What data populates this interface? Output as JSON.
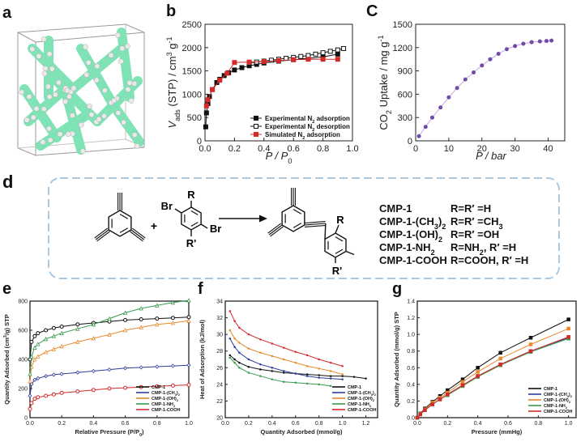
{
  "panels": {
    "a": "a",
    "b": "b",
    "c": "C",
    "d": "d",
    "e": "e",
    "f": "f",
    "g": "g"
  },
  "colors": {
    "framework": "#7fe3b6",
    "atoms": "#e9e9e9",
    "black": "#111111",
    "red": "#d42a2a",
    "purple": "#6f4aa8",
    "orange": "#e8892b",
    "green": "#3a9a4e",
    "blue": "#2c3c9a",
    "cmp1": "#111111",
    "cmp1_ch3": "#2c3c9a",
    "cmp1_oh": "#e8892b",
    "cmp1_nh2": "#3a9a4e",
    "cmp1_cooh": "#d42a2a",
    "scheme_border": "#a9c9e3"
  },
  "chart_data": [
    {
      "id": "b",
      "type": "line",
      "xlabel": "P / P",
      "xlabel_sub": "0",
      "ylabel": "V",
      "ylabel_sub": "ads",
      "ylabel_rest": " (STP) / cm",
      "ylabel_sup": "3",
      "ylabel_end": " g",
      "ylabel_sup2": "-1",
      "xlim": [
        0,
        1.0
      ],
      "ylim": [
        0,
        2500
      ],
      "xticks": [
        "0.0",
        "0.2",
        "0.4",
        "0.6",
        "0.8",
        "1.0"
      ],
      "yticks": [
        "0",
        "500",
        "1000",
        "1500",
        "2000",
        "2500"
      ],
      "legend_position": "bottom-right",
      "series": [
        {
          "name": "Experimental N",
          "name_sub": "2",
          "name_end": " adsorption",
          "marker": "square-filled",
          "color": "#111111",
          "x": [
            0.005,
            0.01,
            0.02,
            0.03,
            0.05,
            0.08,
            0.1,
            0.13,
            0.16,
            0.2,
            0.25,
            0.3,
            0.35,
            0.4,
            0.5,
            0.6,
            0.7,
            0.8,
            0.9
          ],
          "y": [
            300,
            600,
            800,
            950,
            1100,
            1250,
            1320,
            1400,
            1460,
            1520,
            1570,
            1610,
            1640,
            1670,
            1710,
            1740,
            1770,
            1800,
            1860
          ]
        },
        {
          "name": "Experimental N",
          "name_sub": "2",
          "name_end": " desorption",
          "marker": "square-open",
          "color": "#111111",
          "x": [
            0.94,
            0.9,
            0.85,
            0.8,
            0.75,
            0.7,
            0.65,
            0.6,
            0.55,
            0.5,
            0.45,
            0.4,
            0.35,
            0.3
          ],
          "y": [
            1980,
            1950,
            1920,
            1890,
            1860,
            1830,
            1810,
            1790,
            1770,
            1750,
            1730,
            1710,
            1690,
            1670
          ]
        },
        {
          "name": "Simulated N",
          "name_sub": "2",
          "name_end": " adsorption",
          "marker": "square-filled",
          "color": "#d42a2a",
          "x": [
            0.01,
            0.02,
            0.05,
            0.1,
            0.15,
            0.2,
            0.3,
            0.4,
            0.5,
            0.6,
            0.7,
            0.8,
            0.9
          ],
          "y": [
            750,
            880,
            1100,
            1300,
            1450,
            1680,
            1690,
            1700,
            1720,
            1740,
            1750,
            1750,
            1750
          ]
        }
      ]
    },
    {
      "id": "c",
      "type": "line",
      "xlabel": "P / bar",
      "ylabel": "CO",
      "ylabel_sub": "2",
      "ylabel_end": " Uptake / mg g",
      "ylabel_sup": "-1",
      "xlim": [
        0,
        45
      ],
      "ylim": [
        0,
        1500
      ],
      "xticks": [
        "0",
        "10",
        "20",
        "30",
        "40"
      ],
      "yticks": [
        "0",
        "300",
        "600",
        "900",
        "1200",
        "1500"
      ],
      "series": [
        {
          "name": "",
          "marker": "circle-filled",
          "color": "#6f4aa8",
          "x": [
            1,
            3,
            5,
            7.5,
            10,
            12.5,
            15,
            17.5,
            20,
            22.5,
            25,
            27.5,
            30,
            32.5,
            35,
            37.5,
            39.5,
            41
          ],
          "y": [
            60,
            180,
            300,
            430,
            560,
            680,
            790,
            880,
            970,
            1050,
            1120,
            1180,
            1220,
            1250,
            1270,
            1280,
            1285,
            1290
          ]
        }
      ]
    },
    {
      "id": "e",
      "type": "line",
      "xlabel": "Relative Pressure (P/P",
      "xlabel_sub": "0",
      "xlabel_end": ")",
      "ylabel": "Quantity Adsorbed (cm",
      "ylabel_sup": "3",
      "ylabel_end": "/g) STP",
      "xlim": [
        0,
        1.0
      ],
      "ylim": [
        0,
        800
      ],
      "xticks": [
        "0.0",
        "0.2",
        "0.4",
        "0.6",
        "0.8",
        "1.0"
      ],
      "yticks": [
        "0",
        "200",
        "400",
        "600",
        "800"
      ],
      "legend_position": "bottom-right",
      "legend": [
        "CMP-1",
        "CMP-1-(CH",
        "CMP-1-(OH)",
        "CMP-1-NH",
        "CMP-1-COOH"
      ],
      "legend_sub": [
        "",
        "3",
        "2",
        "2",
        ""
      ],
      "legend_end": [
        "",
        ")",
        "",
        "",
        ""
      ],
      "legend_sub2": [
        "",
        "2",
        "",
        "",
        ""
      ],
      "series": [
        {
          "name": "CMP-1",
          "color": "#111111",
          "x": [
            0,
            0.01,
            0.03,
            0.05,
            0.1,
            0.15,
            0.2,
            0.3,
            0.4,
            0.5,
            0.6,
            0.7,
            0.8,
            0.9,
            1.0
          ],
          "y": [
            400,
            520,
            560,
            580,
            600,
            615,
            625,
            640,
            650,
            660,
            670,
            675,
            680,
            685,
            690
          ]
        },
        {
          "name": "CMP-1-(CH3)2",
          "color": "#2c3c9a",
          "x": [
            0,
            0.01,
            0.03,
            0.05,
            0.1,
            0.15,
            0.2,
            0.3,
            0.4,
            0.5,
            0.6,
            0.7,
            0.8,
            0.9,
            1.0
          ],
          "y": [
            150,
            230,
            260,
            270,
            285,
            295,
            300,
            310,
            320,
            330,
            340,
            345,
            350,
            355,
            360
          ]
        },
        {
          "name": "CMP-1-(OH)2",
          "color": "#e8892b",
          "x": [
            0,
            0.01,
            0.03,
            0.05,
            0.1,
            0.15,
            0.2,
            0.3,
            0.4,
            0.5,
            0.6,
            0.7,
            0.8,
            0.9,
            1.0
          ],
          "y": [
            250,
            350,
            400,
            420,
            450,
            470,
            490,
            520,
            545,
            570,
            600,
            620,
            640,
            650,
            665
          ]
        },
        {
          "name": "CMP-1-NH2",
          "color": "#3a9a4e",
          "x": [
            0,
            0.01,
            0.03,
            0.05,
            0.1,
            0.15,
            0.2,
            0.3,
            0.4,
            0.5,
            0.6,
            0.7,
            0.8,
            0.9,
            1.0
          ],
          "y": [
            300,
            420,
            480,
            505,
            540,
            560,
            580,
            610,
            640,
            680,
            720,
            750,
            770,
            790,
            805
          ]
        },
        {
          "name": "CMP-1-COOH",
          "color": "#d42a2a",
          "x": [
            0,
            0.01,
            0.03,
            0.05,
            0.1,
            0.15,
            0.2,
            0.3,
            0.4,
            0.5,
            0.6,
            0.7,
            0.8,
            0.9,
            1.0
          ],
          "y": [
            60,
            100,
            130,
            140,
            150,
            160,
            170,
            180,
            190,
            200,
            205,
            210,
            215,
            220,
            225
          ]
        }
      ]
    },
    {
      "id": "f",
      "type": "line",
      "xlabel": "Quantity Adsorbed (mmol/g)",
      "ylabel": "Heat of Adsorption (kJ/mol)",
      "xlim": [
        0,
        1.3
      ],
      "ylim": [
        20,
        34
      ],
      "xticks": [
        "0.0",
        "0.2",
        "0.4",
        "0.6",
        "0.8",
        "1.0",
        "1.2"
      ],
      "yticks": [
        "20",
        "22",
        "24",
        "26",
        "28",
        "30",
        "32",
        "34"
      ],
      "legend_position": "bottom-right",
      "legend": [
        "CMP-1",
        "CMP-1-(CH",
        "CMP-1-(OH)",
        "CMP-1-NH",
        "CMP-1-COOH"
      ],
      "legend_sub": [
        "",
        "3",
        "2",
        "2",
        ""
      ],
      "legend_end": [
        "",
        ")",
        "",
        "",
        ""
      ],
      "legend_sub2": [
        "",
        "2",
        "",
        "",
        ""
      ],
      "series": [
        {
          "name": "CMP-1",
          "color": "#111111",
          "x": [
            0.04,
            0.08,
            0.12,
            0.2,
            0.3,
            0.4,
            0.5,
            0.6,
            0.7,
            0.8,
            0.9,
            1.0,
            1.1,
            1.2
          ],
          "y": [
            27.5,
            27.0,
            26.6,
            26.1,
            25.8,
            25.6,
            25.4,
            25.3,
            25.2,
            25.1,
            25.0,
            25.0,
            24.9,
            24.7
          ]
        },
        {
          "name": "CMP-1-(CH3)2",
          "color": "#2c3c9a",
          "x": [
            0.04,
            0.08,
            0.12,
            0.2,
            0.3,
            0.4,
            0.5,
            0.6,
            0.7,
            0.8,
            0.9,
            1.0
          ],
          "y": [
            29.5,
            28.5,
            27.8,
            27.0,
            26.4,
            26.0,
            25.6,
            25.3,
            25.0,
            24.8,
            24.7,
            24.6
          ]
        },
        {
          "name": "CMP-1-(OH)2",
          "color": "#e8892b",
          "x": [
            0.04,
            0.08,
            0.12,
            0.2,
            0.3,
            0.4,
            0.5,
            0.6,
            0.7,
            0.8,
            0.9,
            1.0
          ],
          "y": [
            30.5,
            29.5,
            29.0,
            28.3,
            27.8,
            27.4,
            27.0,
            26.6,
            26.2,
            25.9,
            25.6,
            25.2
          ]
        },
        {
          "name": "CMP-1-NH2",
          "color": "#3a9a4e",
          "x": [
            0.04,
            0.08,
            0.12,
            0.2,
            0.3,
            0.4,
            0.5,
            0.6,
            0.7,
            0.8,
            0.9
          ],
          "y": [
            27.2,
            26.6,
            26.0,
            25.4,
            25.0,
            24.6,
            24.3,
            24.2,
            24.1,
            24.0,
            23.8
          ]
        },
        {
          "name": "CMP-1-COOH",
          "color": "#d42a2a",
          "x": [
            0.04,
            0.08,
            0.12,
            0.2,
            0.3,
            0.4,
            0.5,
            0.6,
            0.7,
            0.8,
            0.9,
            1.0
          ],
          "y": [
            32.8,
            31.6,
            30.8,
            30.0,
            29.4,
            28.9,
            28.4,
            27.9,
            27.5,
            27.0,
            26.6,
            26.2
          ]
        }
      ]
    },
    {
      "id": "g",
      "type": "line",
      "xlabel": "Pressure (mmHg)",
      "ylabel": "Quantity Adsorbed (mmol/g) STP",
      "xlim": [
        0,
        1.05
      ],
      "ylim": [
        0,
        1.4
      ],
      "xticks": [
        "0.0",
        "0.2",
        "0.4",
        "0.6",
        "0.8",
        "1.0"
      ],
      "yticks": [
        "0.0",
        "0.2",
        "0.4",
        "0.6",
        "0.8",
        "1.0",
        "1.2",
        "1.4"
      ],
      "legend_position": "bottom-right",
      "legend": [
        "CMP-1",
        "CMP-1-(CH",
        "CMP-1-(OH)",
        "CMP-1-NH",
        "CMP-1-COOH"
      ],
      "legend_sub": [
        "",
        "3",
        "2",
        "2",
        ""
      ],
      "legend_end": [
        "",
        ")",
        "",
        "",
        ""
      ],
      "legend_sub2": [
        "",
        "2",
        "",
        "",
        ""
      ],
      "series": [
        {
          "name": "CMP-1",
          "color": "#111111",
          "x": [
            0,
            0.02,
            0.05,
            0.1,
            0.15,
            0.2,
            0.3,
            0.4,
            0.55,
            0.75,
            1.0
          ],
          "y": [
            0,
            0.05,
            0.11,
            0.19,
            0.26,
            0.33,
            0.46,
            0.6,
            0.78,
            0.96,
            1.18
          ]
        },
        {
          "name": "CMP-1-(CH3)2",
          "color": "#2c3c9a",
          "x": [
            0,
            0.02,
            0.05,
            0.1,
            0.15,
            0.2,
            0.3,
            0.4,
            0.55,
            0.75,
            1.0
          ],
          "y": [
            0,
            0.04,
            0.09,
            0.16,
            0.22,
            0.28,
            0.39,
            0.5,
            0.64,
            0.8,
            0.96
          ]
        },
        {
          "name": "CMP-1-(OH)2",
          "color": "#e8892b",
          "x": [
            0,
            0.02,
            0.05,
            0.1,
            0.15,
            0.2,
            0.3,
            0.4,
            0.55,
            0.75,
            1.0
          ],
          "y": [
            0,
            0.045,
            0.1,
            0.18,
            0.24,
            0.3,
            0.43,
            0.55,
            0.71,
            0.88,
            1.07
          ]
        },
        {
          "name": "CMP-1-NH2",
          "color": "#3a9a4e",
          "x": [
            0,
            0.02,
            0.05,
            0.1,
            0.15,
            0.2,
            0.3,
            0.4,
            0.55,
            0.75,
            1.0
          ],
          "y": [
            0,
            0.04,
            0.09,
            0.16,
            0.22,
            0.27,
            0.38,
            0.49,
            0.63,
            0.79,
            0.95
          ]
        },
        {
          "name": "CMP-1-COOH",
          "color": "#d42a2a",
          "x": [
            0,
            0.02,
            0.05,
            0.1,
            0.15,
            0.2,
            0.3,
            0.4,
            0.55,
            0.75,
            1.0
          ],
          "y": [
            0,
            0.04,
            0.09,
            0.16,
            0.22,
            0.28,
            0.39,
            0.5,
            0.64,
            0.8,
            0.97
          ]
        }
      ]
    }
  ],
  "scheme": {
    "plus": "+",
    "br1": "Br",
    "br2": "Br",
    "r": "R",
    "rprime": "R'",
    "r_prod": "R",
    "rprime_prod": "R'",
    "rows": [
      {
        "name": "CMP-1",
        "name_sub": "",
        "name_end": "",
        "def": "R=R′ =H",
        "def_sub": ""
      },
      {
        "name": "CMP-1-(CH",
        "name_sub": "3",
        "name_end": ")",
        "name_sub2": "2",
        "def": "R=R′ =CH",
        "def_sub": "3"
      },
      {
        "name": "CMP-1-(OH)",
        "name_sub": "2",
        "name_end": "",
        "def": "R=R′ =OH",
        "def_sub": ""
      },
      {
        "name": "CMP-1-NH",
        "name_sub": "2",
        "name_end": "",
        "def": "R=NH",
        "def_sub": "2",
        "def_end": ", R′ =H"
      },
      {
        "name": "CMP-1-COOH",
        "name_sub": "",
        "name_end": "",
        "def": "R=COOH, R′ =H",
        "def_sub": ""
      }
    ]
  }
}
